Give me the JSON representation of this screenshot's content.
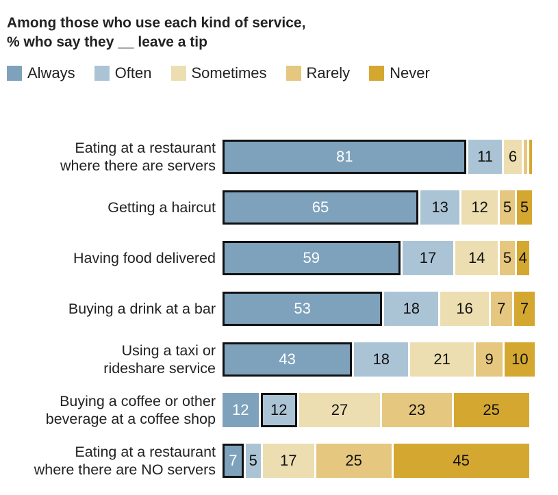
{
  "chart_data": {
    "type": "bar",
    "orientation": "horizontal-stacked",
    "title": "Among those who use each kind of service, % who say they __ leave a tip",
    "title_lines": [
      "Among those who use each kind of service,",
      "% who say they __ leave a tip"
    ],
    "legend": [
      "Always",
      "Often",
      "Sometimes",
      "Rarely",
      "Never"
    ],
    "legend_placement": "top",
    "colors": [
      "#7ea2bc",
      "#abc4d5",
      "#ecdeb0",
      "#e5c77f",
      "#d4a731"
    ],
    "categories": [
      [
        "Eating at a restaurant",
        "where there are servers"
      ],
      [
        "Getting a haircut"
      ],
      [
        "Having food delivered"
      ],
      [
        "Buying a drink at a bar"
      ],
      [
        "Using a taxi or",
        "rideshare service"
      ],
      [
        "Buying a coffee or other",
        "beverage at a coffee shop"
      ],
      [
        "Eating at a restaurant",
        "where there are NO servers"
      ]
    ],
    "series": [
      {
        "name": "Always",
        "values": [
          81,
          65,
          59,
          53,
          43,
          12,
          7
        ]
      },
      {
        "name": "Often",
        "values": [
          11,
          13,
          17,
          18,
          18,
          12,
          5
        ]
      },
      {
        "name": "Sometimes",
        "values": [
          6,
          12,
          14,
          16,
          21,
          27,
          17
        ]
      },
      {
        "name": "Rarely",
        "values": [
          1,
          5,
          5,
          7,
          9,
          23,
          25
        ]
      },
      {
        "name": "Never",
        "values": [
          1,
          5,
          4,
          7,
          10,
          25,
          45
        ]
      }
    ],
    "highlighted_series_index": [
      0,
      0,
      0,
      0,
      0,
      1,
      0
    ],
    "xlim": [
      0,
      100
    ]
  }
}
